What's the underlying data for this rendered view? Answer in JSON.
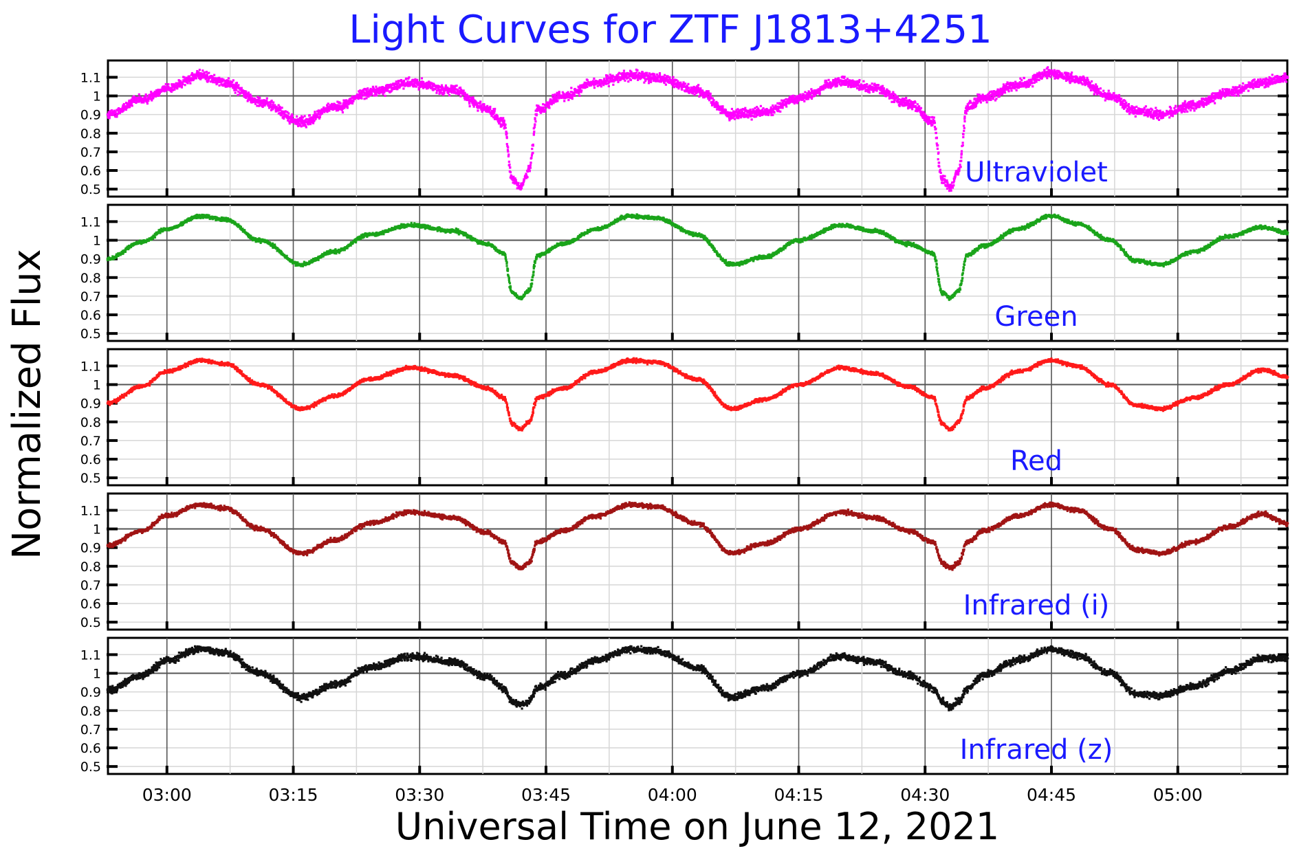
{
  "chart_data": {
    "type": "scatter",
    "title": "Light Curves for ZTF J1813+4251",
    "xlabel": "Universal Time on June 12, 2021",
    "ylabel": "Normalized Flux",
    "xlim": [
      "02:53",
      "05:13"
    ],
    "x_unit": "UT (HH:MM)",
    "ylim": [
      0.46,
      1.19
    ],
    "grid": true,
    "x_ticks": [
      "03:00",
      "03:15",
      "03:30",
      "03:45",
      "04:00",
      "04:15",
      "04:30",
      "04:45",
      "05:00"
    ],
    "y_ticks": [
      "0.5",
      "0.6",
      "0.7",
      "0.8",
      "0.9",
      "1",
      "1.1"
    ],
    "reference_line": 1,
    "panels": [
      {
        "name": "Ultraviolet",
        "color": "#ff00ff",
        "x": [
          "02:53",
          "02:57",
          "03:00",
          "03:04",
          "03:07",
          "03:11",
          "03:16",
          "03:20",
          "03:24",
          "03:29",
          "03:34",
          "03:38",
          "03:40",
          "03:41",
          "03:42",
          "03:43",
          "03:44",
          "03:47",
          "03:51",
          "03:55",
          "03:58",
          "04:03",
          "04:07",
          "04:11",
          "04:15",
          "04:20",
          "04:24",
          "04:28",
          "04:31",
          "04:32",
          "04:33",
          "04:34",
          "04:35",
          "04:37",
          "04:41",
          "04:45",
          "04:48",
          "04:52",
          "04:55",
          "04:58",
          "05:02",
          "05:06",
          "05:10",
          "05:13"
        ],
        "y": [
          0.9,
          0.98,
          1.04,
          1.11,
          1.07,
          0.97,
          0.86,
          0.94,
          1.02,
          1.07,
          1.03,
          0.93,
          0.85,
          0.56,
          0.51,
          0.6,
          0.93,
          1.0,
          1.07,
          1.11,
          1.1,
          1.03,
          0.9,
          0.91,
          0.99,
          1.08,
          1.04,
          0.96,
          0.86,
          0.56,
          0.51,
          0.6,
          0.94,
          0.99,
          1.06,
          1.12,
          1.09,
          1.0,
          0.92,
          0.9,
          0.95,
          1.02,
          1.07,
          1.1
        ]
      },
      {
        "name": "Green",
        "color": "#1aa41a",
        "x": [
          "02:53",
          "02:57",
          "03:00",
          "03:04",
          "03:07",
          "03:11",
          "03:16",
          "03:20",
          "03:24",
          "03:29",
          "03:34",
          "03:38",
          "03:40",
          "03:41",
          "03:42",
          "03:43",
          "03:44",
          "03:47",
          "03:51",
          "03:55",
          "03:58",
          "04:03",
          "04:07",
          "04:11",
          "04:15",
          "04:20",
          "04:24",
          "04:28",
          "04:31",
          "04:32",
          "04:33",
          "04:34",
          "04:35",
          "04:37",
          "04:41",
          "04:45",
          "04:48",
          "04:52",
          "04:55",
          "04:58",
          "05:02",
          "05:06",
          "05:10",
          "05:13"
        ],
        "y": [
          0.9,
          0.99,
          1.06,
          1.13,
          1.11,
          1.0,
          0.87,
          0.94,
          1.03,
          1.08,
          1.05,
          0.98,
          0.93,
          0.72,
          0.69,
          0.73,
          0.92,
          0.98,
          1.06,
          1.13,
          1.12,
          1.03,
          0.87,
          0.91,
          1.0,
          1.08,
          1.05,
          0.98,
          0.93,
          0.72,
          0.69,
          0.73,
          0.92,
          0.97,
          1.06,
          1.13,
          1.09,
          1.0,
          0.89,
          0.87,
          0.94,
          1.02,
          1.07,
          1.04
        ]
      },
      {
        "name": "Red",
        "color": "#ff1a1a",
        "x": [
          "02:53",
          "02:57",
          "03:00",
          "03:04",
          "03:07",
          "03:11",
          "03:16",
          "03:20",
          "03:24",
          "03:29",
          "03:34",
          "03:38",
          "03:40",
          "03:41",
          "03:42",
          "03:43",
          "03:44",
          "03:47",
          "03:51",
          "03:55",
          "03:58",
          "04:03",
          "04:07",
          "04:11",
          "04:15",
          "04:20",
          "04:24",
          "04:28",
          "04:31",
          "04:32",
          "04:33",
          "04:34",
          "04:35",
          "04:37",
          "04:41",
          "04:45",
          "04:48",
          "04:52",
          "04:55",
          "04:58",
          "05:02",
          "05:06",
          "05:10",
          "05:13"
        ],
        "y": [
          0.9,
          0.99,
          1.07,
          1.13,
          1.11,
          1.0,
          0.87,
          0.94,
          1.03,
          1.09,
          1.05,
          0.98,
          0.93,
          0.79,
          0.76,
          0.8,
          0.93,
          0.98,
          1.07,
          1.13,
          1.12,
          1.03,
          0.87,
          0.92,
          1.0,
          1.09,
          1.06,
          0.99,
          0.93,
          0.79,
          0.76,
          0.8,
          0.93,
          0.98,
          1.07,
          1.13,
          1.1,
          1.0,
          0.89,
          0.87,
          0.93,
          1.0,
          1.08,
          1.04
        ]
      },
      {
        "name": "Infrared (i)",
        "color": "#a01414",
        "x": [
          "02:53",
          "02:57",
          "03:00",
          "03:04",
          "03:07",
          "03:11",
          "03:16",
          "03:20",
          "03:24",
          "03:29",
          "03:34",
          "03:38",
          "03:40",
          "03:41",
          "03:42",
          "03:43",
          "03:44",
          "03:47",
          "03:51",
          "03:55",
          "03:58",
          "04:03",
          "04:07",
          "04:11",
          "04:15",
          "04:20",
          "04:24",
          "04:28",
          "04:31",
          "04:32",
          "04:33",
          "04:34",
          "04:35",
          "04:37",
          "04:41",
          "04:45",
          "04:48",
          "04:52",
          "04:55",
          "04:58",
          "05:02",
          "05:06",
          "05:10",
          "05:13"
        ],
        "y": [
          0.91,
          0.99,
          1.07,
          1.13,
          1.11,
          1.0,
          0.87,
          0.94,
          1.03,
          1.09,
          1.06,
          0.98,
          0.93,
          0.82,
          0.79,
          0.82,
          0.93,
          0.99,
          1.07,
          1.13,
          1.12,
          1.03,
          0.87,
          0.92,
          1.0,
          1.09,
          1.06,
          0.99,
          0.93,
          0.82,
          0.79,
          0.82,
          0.93,
          0.99,
          1.07,
          1.13,
          1.1,
          1.0,
          0.89,
          0.87,
          0.93,
          1.01,
          1.08,
          1.03
        ]
      },
      {
        "name": "Infrared (z)",
        "color": "#111111",
        "x": [
          "02:53",
          "02:57",
          "03:00",
          "03:04",
          "03:07",
          "03:11",
          "03:16",
          "03:20",
          "03:24",
          "03:29",
          "03:34",
          "03:38",
          "03:40",
          "03:41",
          "03:42",
          "03:43",
          "03:44",
          "03:47",
          "03:51",
          "03:55",
          "03:58",
          "04:03",
          "04:07",
          "04:11",
          "04:15",
          "04:20",
          "04:24",
          "04:28",
          "04:31",
          "04:32",
          "04:33",
          "04:34",
          "04:35",
          "04:37",
          "04:41",
          "04:45",
          "04:48",
          "04:52",
          "04:55",
          "04:58",
          "05:02",
          "05:06",
          "05:10",
          "05:13"
        ],
        "y": [
          0.91,
          0.99,
          1.07,
          1.13,
          1.11,
          1.0,
          0.87,
          0.94,
          1.03,
          1.09,
          1.06,
          0.98,
          0.92,
          0.85,
          0.83,
          0.85,
          0.92,
          0.99,
          1.07,
          1.13,
          1.12,
          1.03,
          0.87,
          0.92,
          1.0,
          1.09,
          1.06,
          0.99,
          0.92,
          0.85,
          0.82,
          0.85,
          0.92,
          0.99,
          1.07,
          1.13,
          1.1,
          1.0,
          0.89,
          0.88,
          0.93,
          1.01,
          1.08,
          1.08
        ]
      }
    ]
  }
}
